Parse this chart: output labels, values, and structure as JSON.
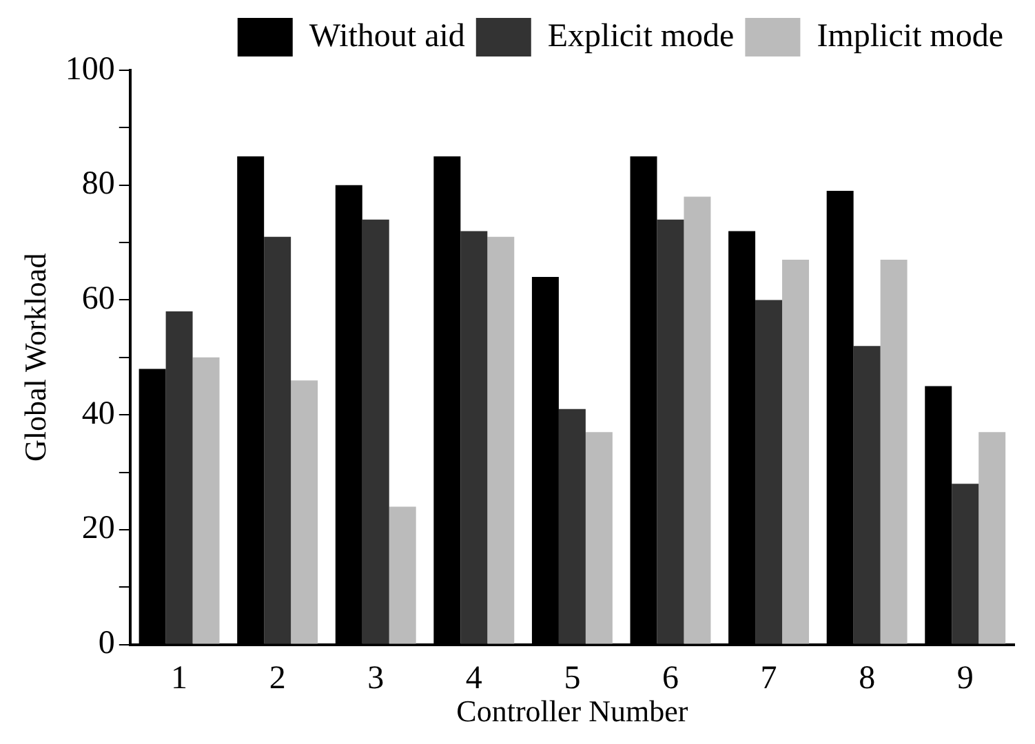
{
  "chart_data": {
    "type": "bar",
    "xlabel": "Controller Number",
    "ylabel": "Global Workload",
    "categories": [
      "1",
      "2",
      "3",
      "4",
      "5",
      "6",
      "7",
      "8",
      "9"
    ],
    "series": [
      {
        "name": "Without aid",
        "color": "#000000",
        "values": [
          48,
          85,
          80,
          85,
          64,
          85,
          72,
          79,
          45
        ]
      },
      {
        "name": "Explicit mode",
        "color": "#333333",
        "values": [
          58,
          71,
          74,
          72,
          41,
          74,
          60,
          52,
          28
        ]
      },
      {
        "name": "Implicit mode",
        "color": "#bbbbbb",
        "values": [
          50,
          46,
          24,
          71,
          37,
          78,
          67,
          67,
          37
        ]
      }
    ],
    "ylim": [
      0,
      100
    ],
    "yticks": [
      0,
      {
        "value": 10,
        "label": null
      },
      20,
      {
        "value": 30,
        "label": null
      },
      40,
      {
        "value": 50,
        "label": null
      },
      60,
      {
        "value": 70,
        "label": null
      },
      80,
      {
        "value": 90,
        "label": null
      },
      100
    ],
    "legend": "top right",
    "grid": false
  }
}
